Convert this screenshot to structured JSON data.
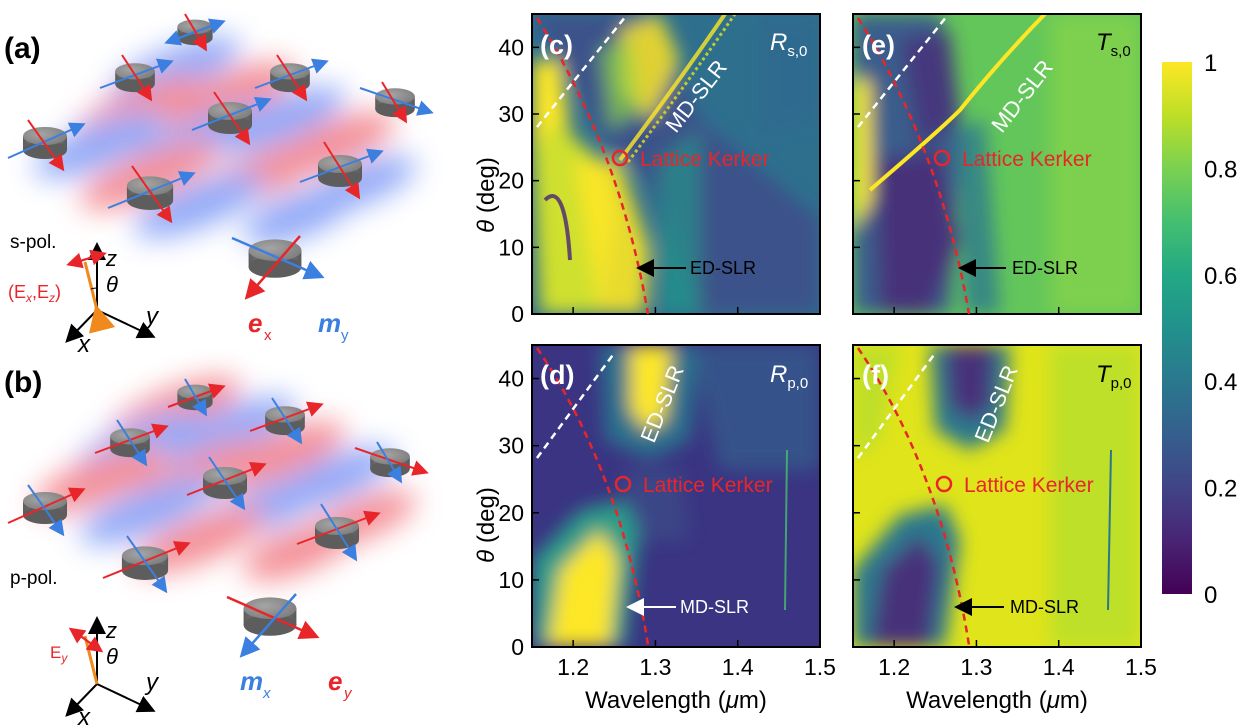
{
  "panels": {
    "a": "(a)",
    "b": "(b)",
    "c": "(c)",
    "d": "(d)",
    "e": "(e)",
    "f": "(f)"
  },
  "schematic": {
    "a": {
      "polarization": "s-pol.",
      "field_label": "(E",
      "field_sub1": "x",
      "field_mid": ",E",
      "field_sub2": "z",
      "field_end": ")",
      "axis_z": "z",
      "axis_y": "y",
      "axis_x": "x",
      "angle": "θ",
      "dipole_e": "e",
      "dipole_e_sub": "x",
      "dipole_m": "m",
      "dipole_m_sub": "y"
    },
    "b": {
      "polarization": "p-pol.",
      "field_label": "E",
      "field_sub": "y",
      "axis_z": "z",
      "axis_y": "y",
      "axis_x": "x",
      "angle": "θ",
      "dipole_m": "m",
      "dipole_m_sub": "x",
      "dipole_e": "e",
      "dipole_e_sub": "y"
    },
    "colors": {
      "electric": "#e8262a",
      "magnetic": "#3b7fe0",
      "disk": "#7a7a7a"
    }
  },
  "axes": {
    "ylabel_sym": "θ",
    "ylabel_rest": " (deg)",
    "xlabel_a": "Wavelength (",
    "xlabel_mu": "μ",
    "xlabel_b": "m)",
    "xticks": [
      "1.2",
      "1.3",
      "1.4",
      "1.5"
    ],
    "yticks": [
      "0",
      "10",
      "20",
      "30",
      "40"
    ],
    "xlim": [
      1.15,
      1.5
    ],
    "ylim": [
      0,
      45
    ]
  },
  "maps": {
    "c": {
      "sym": "R",
      "sub": "s,0",
      "kerker": "Lattice Kerker",
      "slr": "MD-SLR",
      "arrow_label": "ED-SLR"
    },
    "e": {
      "sym": "T",
      "sub": "s,0",
      "kerker": "Lattice Kerker",
      "slr": "MD-SLR",
      "arrow_label": "ED-SLR"
    },
    "d": {
      "sym": "R",
      "sub": "p,0",
      "kerker": "Lattice Kerker",
      "slr": "ED-SLR",
      "arrow_label": "MD-SLR"
    },
    "f": {
      "sym": "T",
      "sub": "p,0",
      "kerker": "Lattice Kerker",
      "slr": "ED-SLR",
      "arrow_label": "MD-SLR"
    }
  },
  "colorbar": {
    "ticks": [
      "1",
      "0.8",
      "0.6",
      "0.4",
      "0.2",
      "0"
    ],
    "range": [
      0,
      1
    ],
    "colors": [
      "#fde725",
      "#7ad151",
      "#22a884",
      "#2a788e",
      "#414487",
      "#440154"
    ]
  },
  "chart_data": [
    {
      "type": "heatmap",
      "panel": "(c)",
      "title": "R s,0",
      "xlabel": "Wavelength (μm)",
      "ylabel": "θ (deg)",
      "xlim": [
        1.15,
        1.5
      ],
      "ylim": [
        0,
        45
      ],
      "colorbar_range": [
        0,
        1
      ],
      "annotations": [
        {
          "text": "Lattice Kerker",
          "x": 1.26,
          "y": 23
        },
        {
          "text": "MD-SLR",
          "x": 1.31,
          "y": 32
        },
        {
          "text": "ED-SLR",
          "x": 1.29,
          "y": 7
        }
      ]
    },
    {
      "type": "heatmap",
      "panel": "(e)",
      "title": "T s,0",
      "xlabel": "Wavelength (μm)",
      "ylabel": "θ (deg)",
      "xlim": [
        1.15,
        1.5
      ],
      "ylim": [
        0,
        45
      ],
      "colorbar_range": [
        0,
        1
      ],
      "annotations": [
        {
          "text": "Lattice Kerker",
          "x": 1.26,
          "y": 23
        },
        {
          "text": "MD-SLR",
          "x": 1.31,
          "y": 32
        },
        {
          "text": "ED-SLR",
          "x": 1.29,
          "y": 7
        }
      ]
    },
    {
      "type": "heatmap",
      "panel": "(d)",
      "title": "R p,0",
      "xlabel": "Wavelength (μm)",
      "ylabel": "θ (deg)",
      "xlim": [
        1.15,
        1.5
      ],
      "ylim": [
        0,
        45
      ],
      "colorbar_range": [
        0,
        1
      ],
      "annotations": [
        {
          "text": "Lattice Kerker",
          "x": 1.26,
          "y": 24
        },
        {
          "text": "ED-SLR",
          "x": 1.29,
          "y": 35
        },
        {
          "text": "MD-SLR",
          "x": 1.29,
          "y": 5
        }
      ]
    },
    {
      "type": "heatmap",
      "panel": "(f)",
      "title": "T p,0",
      "xlabel": "Wavelength (μm)",
      "ylabel": "θ (deg)",
      "xlim": [
        1.15,
        1.5
      ],
      "ylim": [
        0,
        45
      ],
      "colorbar_range": [
        0,
        1
      ],
      "annotations": [
        {
          "text": "Lattice Kerker",
          "x": 1.26,
          "y": 24
        },
        {
          "text": "ED-SLR",
          "x": 1.29,
          "y": 35
        },
        {
          "text": "MD-SLR",
          "x": 1.29,
          "y": 5
        }
      ]
    }
  ]
}
